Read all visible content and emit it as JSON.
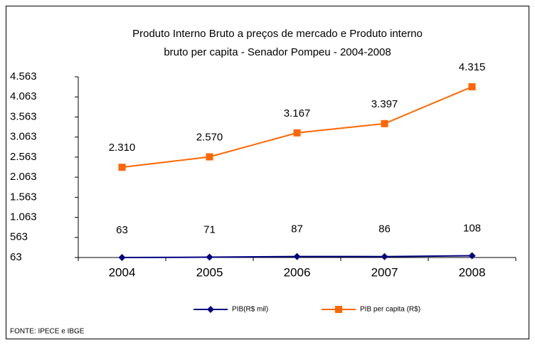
{
  "chart_data": {
    "type": "line",
    "title": "Produto Interno Bruto a preços de mercado  e   Produto interno",
    "subtitle": "bruto per capita -  Senador Pompeu - 2004-2008",
    "categories": [
      "2004",
      "2005",
      "2006",
      "2007",
      "2008"
    ],
    "series": [
      {
        "name": "PIB(R$ mil)",
        "color": "#000080",
        "values": [
          63,
          71,
          87,
          86,
          108
        ]
      },
      {
        "name": "PIB per capita (R$)",
        "color": "#ff6600",
        "values": [
          2310,
          2570,
          3167,
          3397,
          4315
        ],
        "value_labels": [
          "2.310",
          "2.570",
          "3.167",
          "3.397",
          "4.315"
        ]
      }
    ],
    "ylim": [
      63,
      4563
    ],
    "yticks": [
      63,
      563,
      {
        "value": 1063,
        "label": "1.063"
      },
      {
        "value": 1563,
        "label": "1.563"
      },
      {
        "value": 2063,
        "label": "2.063"
      },
      {
        "value": 2563,
        "label": "2.563"
      },
      {
        "value": 3063,
        "label": "3.063"
      },
      {
        "value": 3563,
        "label": "3.563"
      },
      {
        "value": 4063,
        "label": "4.063"
      },
      {
        "value": 4563,
        "label": "4.563"
      }
    ],
    "legend": "bottom",
    "source": "FONTE: IPECE e IBGE"
  }
}
